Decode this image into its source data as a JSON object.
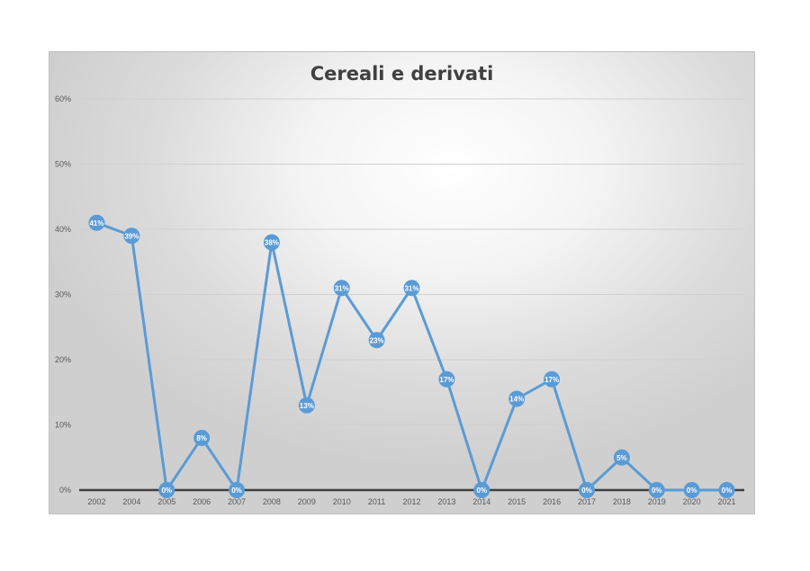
{
  "chart_data": {
    "type": "line",
    "title": "Cereali e derivati",
    "xlabel": "",
    "ylabel": "",
    "ylim": [
      0,
      60
    ],
    "yticks": [
      "0%",
      "10%",
      "20%",
      "30%",
      "40%",
      "50%",
      "60%"
    ],
    "grid": true,
    "legend": "none",
    "categories": [
      "2002",
      "2004",
      "2005",
      "2006",
      "2007",
      "2008",
      "2009",
      "2010",
      "2011",
      "2012",
      "2013",
      "2014",
      "2015",
      "2016",
      "2017",
      "2018",
      "2019",
      "2020",
      "2021"
    ],
    "series": [
      {
        "values": [
          41,
          39,
          0,
          8,
          0,
          38,
          13,
          31,
          23,
          31,
          17,
          0,
          14,
          17,
          0,
          5,
          0,
          0,
          0
        ],
        "labels": [
          "41%",
          "39%",
          "0%",
          "8%",
          "0%",
          "38%",
          "13%",
          "31%",
          "23%",
          "31%",
          "17%",
          "0%",
          "14%",
          "17%",
          "0%",
          "5%",
          "0%",
          "0%",
          "0%"
        ],
        "color": "#5b9bd5"
      }
    ]
  }
}
